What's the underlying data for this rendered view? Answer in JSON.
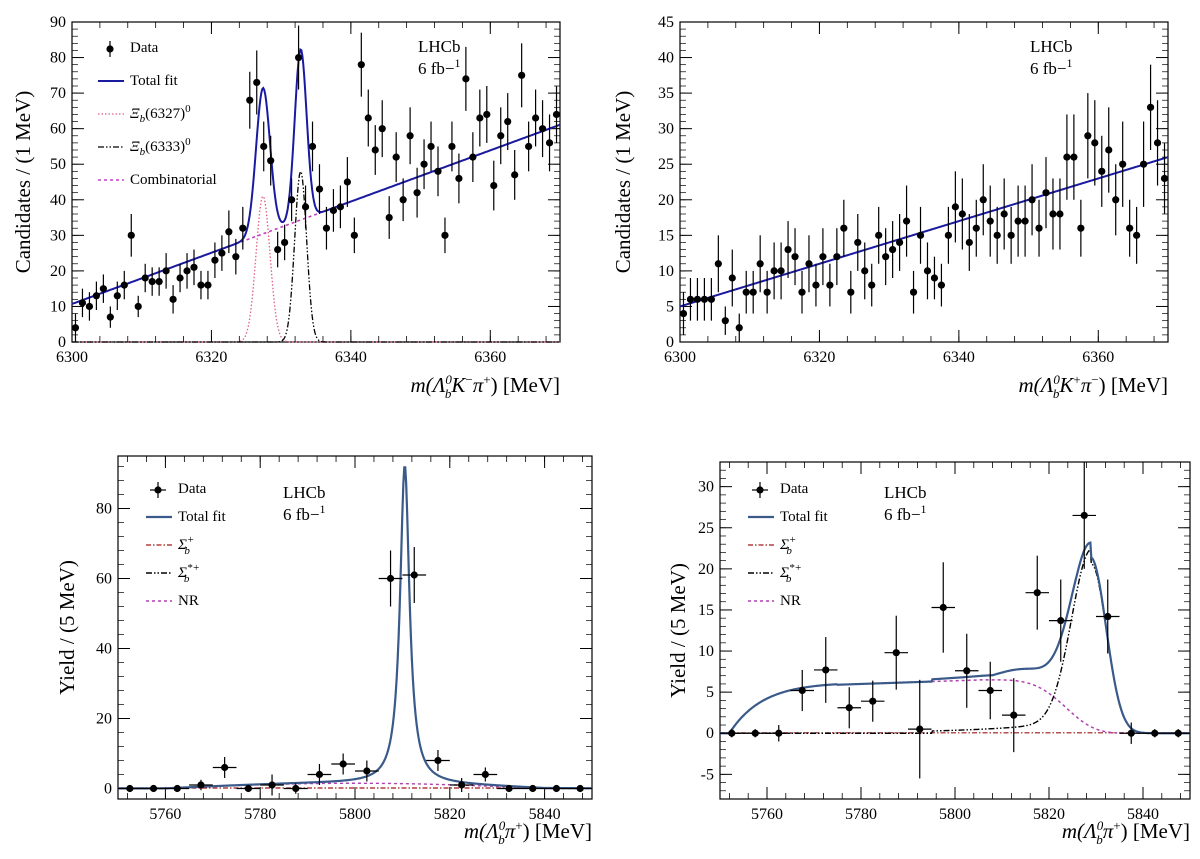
{
  "chart_data": [
    {
      "type": "scatter",
      "panel": "top-left",
      "xlabel": "m(Λb0K−π+) [MeV]",
      "xlabel_parts": {
        "pre": "m(",
        "sym": "Λ",
        "sup": "0",
        "sub": "b",
        "post1": "K",
        "post1_sup": "−",
        "post2": "π",
        "post2_sup": "+",
        "suffix": ") [MeV]"
      },
      "ylabel": "Candidates / (1 MeV)",
      "xlim": [
        6300,
        6370
      ],
      "ylim": [
        0,
        90
      ],
      "xticks": [
        6300,
        6320,
        6340,
        6360
      ],
      "yticks": [
        0,
        10,
        20,
        30,
        40,
        50,
        60,
        70,
        80,
        90
      ],
      "annotation": [
        "LHCb",
        "6 fb−1"
      ],
      "legend": [
        "Data",
        "Total fit",
        "Ξb(6327)0",
        "Ξb(6333)0",
        "Combinatorial"
      ],
      "legend_placement": "top-left",
      "data": {
        "x": [
          6300.5,
          6301.5,
          6302.5,
          6303.5,
          6304.5,
          6305.5,
          6306.5,
          6307.5,
          6308.5,
          6309.5,
          6310.5,
          6311.5,
          6312.5,
          6313.5,
          6314.5,
          6315.5,
          6316.5,
          6317.5,
          6318.5,
          6319.5,
          6320.5,
          6321.5,
          6322.5,
          6323.5,
          6324.5,
          6325.5,
          6326.5,
          6327.5,
          6328.5,
          6329.5,
          6330.5,
          6331.5,
          6332.5,
          6333.5,
          6334.5,
          6335.5,
          6336.5,
          6337.5,
          6338.5,
          6339.5,
          6340.5,
          6341.5,
          6342.5,
          6343.5,
          6344.5,
          6345.5,
          6346.5,
          6347.5,
          6348.5,
          6349.5,
          6350.5,
          6351.5,
          6352.5,
          6353.5,
          6354.5,
          6355.5,
          6356.5,
          6357.5,
          6358.5,
          6359.5,
          6360.5,
          6361.5,
          6362.5,
          6363.5,
          6364.5,
          6365.5,
          6366.5,
          6367.5,
          6368.5,
          6369.5
        ],
        "y": [
          4,
          11,
          10,
          13,
          15,
          7,
          13,
          16,
          30,
          10,
          18,
          17,
          17,
          20,
          12,
          18,
          20,
          21,
          16,
          16,
          23,
          25,
          31,
          24,
          32,
          68,
          73,
          55,
          51,
          26,
          28,
          40,
          80,
          38,
          55,
          43,
          32,
          37,
          38,
          45,
          30,
          78,
          63,
          54,
          60,
          35,
          52,
          40,
          58,
          42,
          50,
          55,
          48,
          30,
          55,
          46,
          74,
          52,
          63,
          64,
          44,
          58,
          62,
          47,
          75,
          55,
          63,
          60,
          56,
          64
        ],
        "err": [
          4,
          4,
          4,
          4,
          4,
          3,
          4,
          4,
          6,
          3,
          4,
          4,
          4,
          5,
          4,
          4,
          5,
          5,
          4,
          4,
          5,
          5,
          6,
          5,
          6,
          8,
          9,
          7,
          7,
          5,
          5,
          6,
          9,
          6,
          7,
          7,
          6,
          6,
          6,
          7,
          5,
          9,
          8,
          7,
          8,
          6,
          7,
          6,
          8,
          7,
          7,
          7,
          7,
          5,
          7,
          7,
          9,
          7,
          8,
          8,
          7,
          8,
          8,
          7,
          9,
          7,
          8,
          8,
          8,
          8
        ]
      },
      "fit_models": {
        "combinatorial": [
          10.7,
          0.72
        ],
        "peak1": [
          6327.4,
          1.0,
          41
        ],
        "peak2": [
          6332.8,
          0.85,
          48
        ]
      }
    },
    {
      "type": "scatter",
      "panel": "top-right",
      "xlabel": "m(Λb0K+π−) [MeV]",
      "xlabel_parts": {
        "pre": "m(",
        "sym": "Λ",
        "sup": "0",
        "sub": "b",
        "post1": "K",
        "post1_sup": "+",
        "post2": "π",
        "post2_sup": "−",
        "suffix": ") [MeV]"
      },
      "ylabel": "Candidates / (1 MeV)",
      "xlim": [
        6300,
        6370
      ],
      "ylim": [
        0,
        45
      ],
      "xticks": [
        6300,
        6320,
        6340,
        6360
      ],
      "yticks": [
        0,
        5,
        10,
        15,
        20,
        25,
        30,
        35,
        40,
        45
      ],
      "annotation": [
        "LHCb",
        "6 fb−1"
      ],
      "data": {
        "x": [
          6300.5,
          6301.5,
          6302.5,
          6303.5,
          6304.5,
          6305.5,
          6306.5,
          6307.5,
          6308.5,
          6309.5,
          6310.5,
          6311.5,
          6312.5,
          6313.5,
          6314.5,
          6315.5,
          6316.5,
          6317.5,
          6318.5,
          6319.5,
          6320.5,
          6321.5,
          6322.5,
          6323.5,
          6324.5,
          6325.5,
          6326.5,
          6327.5,
          6328.5,
          6329.5,
          6330.5,
          6331.5,
          6332.5,
          6333.5,
          6334.5,
          6335.5,
          6336.5,
          6337.5,
          6338.5,
          6339.5,
          6340.5,
          6341.5,
          6342.5,
          6343.5,
          6344.5,
          6345.5,
          6346.5,
          6347.5,
          6348.5,
          6349.5,
          6350.5,
          6351.5,
          6352.5,
          6353.5,
          6354.5,
          6355.5,
          6356.5,
          6357.5,
          6358.5,
          6359.5,
          6360.5,
          6361.5,
          6362.5,
          6363.5,
          6364.5,
          6365.5,
          6366.5,
          6367.5,
          6368.5,
          6369.5
        ],
        "y": [
          4,
          6,
          6,
          6,
          6,
          11,
          3,
          9,
          2,
          7,
          7,
          11,
          7,
          10,
          10,
          13,
          12,
          7,
          11,
          8,
          12,
          8,
          12,
          16,
          7,
          14,
          10,
          8,
          15,
          12,
          13,
          14,
          17,
          7,
          15,
          10,
          9,
          8,
          15,
          19,
          18,
          14,
          16,
          20,
          17,
          15,
          18,
          15,
          17,
          17,
          20,
          16,
          21,
          18,
          18,
          26,
          26,
          16,
          29,
          28,
          24,
          27,
          20,
          25,
          16,
          15,
          25,
          33,
          28,
          23
        ],
        "err": [
          3,
          3,
          3,
          3,
          3,
          4,
          2,
          4,
          2,
          3,
          3,
          4,
          3,
          4,
          4,
          4,
          4,
          3,
          4,
          3,
          4,
          3,
          4,
          4,
          3,
          4,
          4,
          3,
          4,
          4,
          4,
          4,
          5,
          3,
          4,
          4,
          3,
          3,
          4,
          5,
          5,
          4,
          4,
          5,
          5,
          4,
          5,
          4,
          5,
          5,
          5,
          4,
          5,
          5,
          5,
          6,
          6,
          4,
          6,
          6,
          5,
          6,
          5,
          6,
          4,
          4,
          6,
          6,
          6,
          5
        ]
      },
      "fit_models": {
        "background": [
          5,
          0.3
        ]
      }
    },
    {
      "type": "scatter",
      "panel": "bottom-left",
      "xlabel": "m(Λb0π+) [MeV]",
      "xlabel_parts": {
        "pre": "m(",
        "sym": "Λ",
        "sup": "0",
        "sub": "b",
        "post1": "π",
        "post1_sup": "+",
        "post2": "",
        "post2_sup": "",
        "suffix": ") [MeV]"
      },
      "ylabel": "Yield / (5 MeV)",
      "xlim": [
        5750,
        5850
      ],
      "ylim": [
        -3,
        95
      ],
      "xticks": [
        5760,
        5780,
        5800,
        5820,
        5840
      ],
      "yticks": [
        0,
        20,
        40,
        60,
        80
      ],
      "annotation": [
        "LHCb",
        "6 fb−1"
      ],
      "legend": [
        "Data",
        "Total fit",
        "Σb+",
        "Σb*+",
        "NR"
      ],
      "legend_placement": "top-left",
      "data": {
        "x": [
          5752.5,
          5757.5,
          5762.5,
          5767.5,
          5772.5,
          5777.5,
          5782.5,
          5787.5,
          5792.5,
          5797.5,
          5802.5,
          5807.5,
          5812.5,
          5817.5,
          5822.5,
          5827.5,
          5832.5,
          5837.5,
          5842.5,
          5847.5
        ],
        "y": [
          0,
          0,
          0,
          1,
          6,
          0,
          1,
          0,
          4,
          7,
          5,
          60,
          61,
          8,
          1,
          4,
          0,
          0,
          0,
          0
        ],
        "err": [
          1,
          1,
          1,
          1.5,
          3,
          1,
          3,
          1.5,
          3,
          3,
          3,
          8,
          8,
          3,
          2,
          2,
          1,
          1,
          1,
          1
        ]
      },
      "fit_models": {
        "peak": [
          5810.5,
          2.4,
          91
        ],
        "nr": [
          1.5
        ]
      }
    },
    {
      "type": "scatter",
      "panel": "bottom-right",
      "xlabel": "m(Λb0π+) [MeV]",
      "xlabel_parts": {
        "pre": "m(",
        "sym": "Λ",
        "sup": "0",
        "sub": "b",
        "post1": "π",
        "post1_sup": "+",
        "post2": "",
        "post2_sup": "",
        "suffix": ") [MeV]"
      },
      "ylabel": "Yield / (5 MeV)",
      "xlim": [
        5750,
        5850
      ],
      "ylim": [
        -8,
        33
      ],
      "xticks": [
        5760,
        5780,
        5800,
        5820,
        5840
      ],
      "yticks": [
        -5,
        0,
        5,
        10,
        15,
        20,
        25,
        30
      ],
      "annotation": [
        "LHCb",
        "6 fb−1"
      ],
      "legend": [
        "Data",
        "Total fit",
        "Σb+",
        "Σb*+",
        "NR"
      ],
      "legend_placement": "top-left",
      "data": {
        "x": [
          5752.5,
          5757.5,
          5762.5,
          5767.5,
          5772.5,
          5777.5,
          5782.5,
          5787.5,
          5792.5,
          5797.5,
          5802.5,
          5807.5,
          5812.5,
          5817.5,
          5822.5,
          5827.5,
          5832.5,
          5837.5,
          5842.5,
          5847.5
        ],
        "y": [
          0,
          0,
          0,
          5.2,
          7.7,
          3.1,
          3.9,
          9.8,
          0.5,
          15.3,
          7.6,
          5.2,
          2.2,
          17.1,
          13.7,
          26.5,
          14.2,
          0,
          0,
          0
        ],
        "err": [
          0.5,
          0.5,
          1,
          2.5,
          4,
          2.5,
          2.5,
          4.5,
          6,
          5.5,
          4.5,
          3.5,
          4.5,
          4.5,
          5,
          6.5,
          4.5,
          1.3,
          0.5,
          0.5
        ]
      }
    }
  ]
}
